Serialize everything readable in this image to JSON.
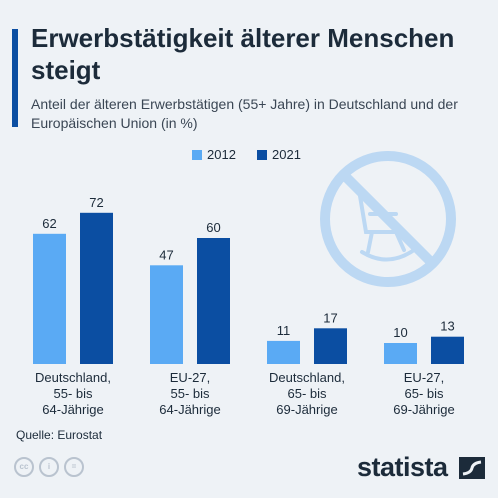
{
  "header": {
    "title": "Erwerbstätigkeit älterer Menschen steigt",
    "subtitle": "Anteil der älteren Erwerbstätigen (55+ Jahre) in Deutschland und der Europäischen Union (in %)"
  },
  "colors": {
    "series_2012": "#5aaaf4",
    "series_2021": "#0b4ea2",
    "accent": "#0b4ea2",
    "decoration": "#bcd8f3"
  },
  "chart_data": {
    "type": "bar",
    "categories": [
      [
        "Deutschland,",
        "55- bis",
        "64-Jährige"
      ],
      [
        "EU-27,",
        "55- bis",
        "64-Jährige"
      ],
      [
        "Deutschland,",
        "65- bis",
        "69-Jährige"
      ],
      [
        "EU-27,",
        "65- bis",
        "69-Jährige"
      ]
    ],
    "series": [
      {
        "name": "2012",
        "values": [
          62,
          47,
          11,
          10
        ]
      },
      {
        "name": "2021",
        "values": [
          72,
          60,
          17,
          13
        ]
      }
    ],
    "title": "Erwerbstätigkeit älterer Menschen steigt",
    "xlabel": "",
    "ylabel": "",
    "ylim": [
      0,
      80
    ],
    "grid": false,
    "legend": "top-center"
  },
  "decoration_icon": "no-rocking-chair-icon",
  "footer": {
    "source": "Quelle: Eurostat",
    "license_icons": [
      "cc-icon",
      "by-icon",
      "nd-icon"
    ],
    "logo": "statista"
  }
}
